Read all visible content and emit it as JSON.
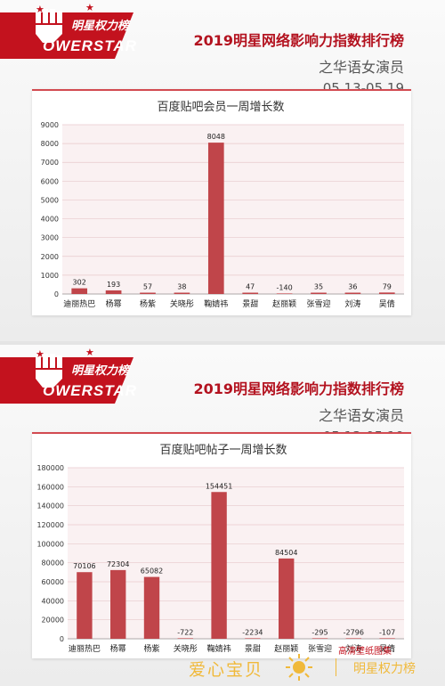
{
  "brand": {
    "cn": "明星权力榜",
    "en": "OWERSTAR"
  },
  "header": {
    "title": "2019明星网络影响力指数排行榜",
    "subtitle": "之华语女演员",
    "date_range": "05.13-05.19"
  },
  "chart_data": [
    {
      "type": "bar",
      "title": "百度贴吧会员一周增长数",
      "categories": [
        "迪丽热巴",
        "杨幂",
        "杨紫",
        "关晓彤",
        "鞠婧祎",
        "景甜",
        "赵丽颖",
        "张雪迎",
        "刘涛",
        "吴倩"
      ],
      "values": [
        302,
        193,
        57,
        38,
        8048,
        47,
        -140,
        35,
        36,
        79
      ],
      "ylim": [
        0,
        9000
      ],
      "yticks": [
        0,
        1000,
        2000,
        3000,
        4000,
        5000,
        6000,
        7000,
        8000,
        9000
      ],
      "grid": true,
      "bar_color": "#c0454a"
    },
    {
      "type": "bar",
      "title": "百度贴吧帖子一周增长数",
      "categories": [
        "迪丽热巴",
        "杨幂",
        "杨紫",
        "关晓彤",
        "鞠婧祎",
        "景甜",
        "赵丽颖",
        "张雪迎",
        "刘涛",
        "吴倩"
      ],
      "values": [
        70106,
        72304,
        65082,
        -722,
        154451,
        -2234,
        84504,
        -295,
        -2796,
        -107
      ],
      "ylim": [
        0,
        180000
      ],
      "yticks": [
        0,
        20000,
        40000,
        60000,
        80000,
        100000,
        120000,
        140000,
        160000,
        180000
      ],
      "grid": true,
      "bar_color": "#c0454a"
    }
  ],
  "footer": {
    "left_text": "爱心宝贝",
    "right_text": "明星权力榜",
    "watermark": "高清壁纸图集"
  },
  "colors": {
    "accent": "#c3121e",
    "bar": "#c0454a",
    "gold": "#f0b93a"
  }
}
